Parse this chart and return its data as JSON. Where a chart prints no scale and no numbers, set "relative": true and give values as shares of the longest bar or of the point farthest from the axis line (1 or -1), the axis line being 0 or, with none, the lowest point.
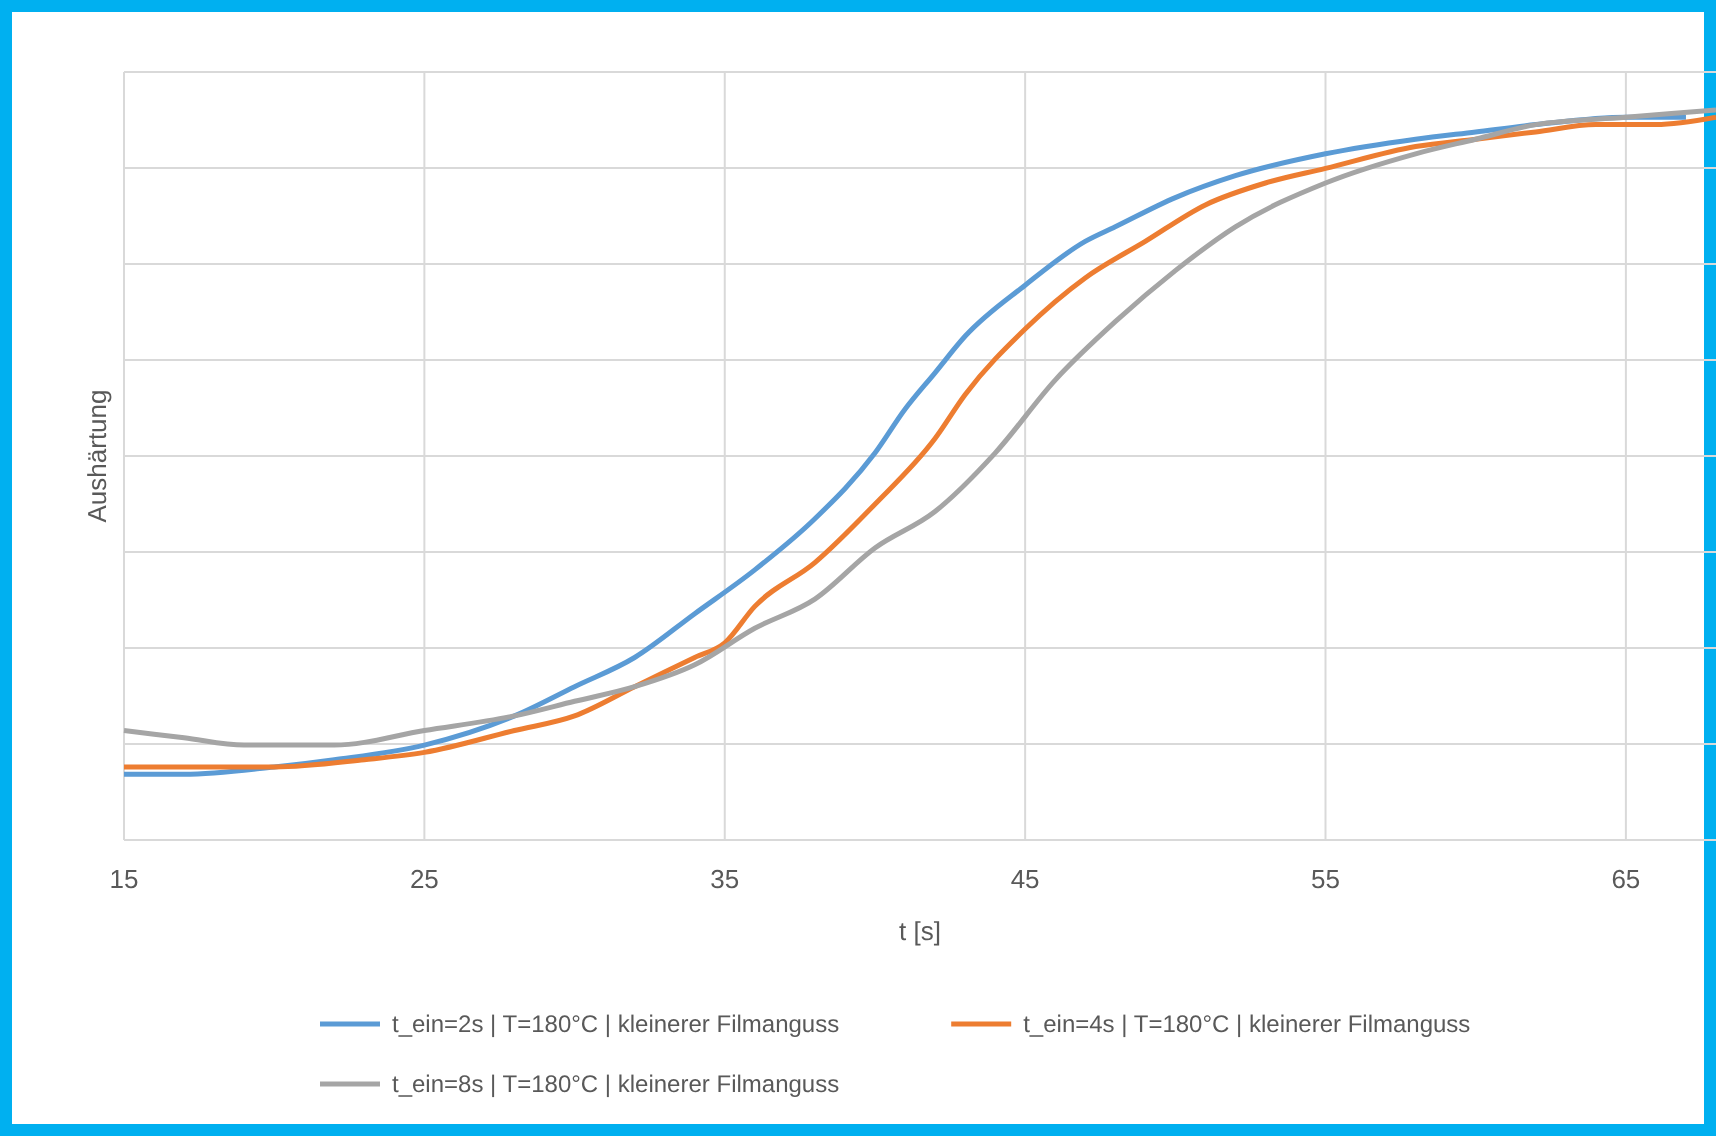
{
  "chart_data": {
    "type": "line",
    "relative": true,
    "xlabel": "t [s]",
    "ylabel": "Aushärtung",
    "xlim": [
      15,
      68
    ],
    "xticks": [
      15,
      25,
      35,
      45,
      55,
      65
    ],
    "grid": true,
    "legend": "bottom",
    "marker": "none",
    "line_style": "solid",
    "series": [
      {
        "name": "t_ein=2s | T=180°C | kleinerer Filmanguss",
        "color": "#5b9bd5",
        "x": [
          15,
          17,
          20,
          22,
          25,
          28,
          30,
          32,
          34,
          36,
          38,
          40,
          41,
          42,
          43,
          45,
          47,
          48,
          50,
          52,
          55,
          58,
          60,
          62,
          65,
          67
        ],
        "values": [
          0.09,
          0.09,
          0.1,
          0.11,
          0.13,
          0.17,
          0.21,
          0.25,
          0.31,
          0.37,
          0.44,
          0.53,
          0.59,
          0.64,
          0.69,
          0.76,
          0.82,
          0.84,
          0.88,
          0.91,
          0.94,
          0.96,
          0.97,
          0.98,
          0.99,
          0.99
        ]
      },
      {
        "name": "t_ein=4s | T=180°C | kleinerer Filmanguss",
        "color": "#ed7d31",
        "x": [
          15,
          17,
          20,
          23,
          25,
          28,
          30,
          32,
          34,
          35,
          36,
          38,
          40,
          42,
          43,
          45,
          47,
          49,
          51,
          53,
          55,
          58,
          60,
          62,
          64,
          66,
          68
        ],
        "values": [
          0.1,
          0.1,
          0.1,
          0.11,
          0.12,
          0.15,
          0.17,
          0.21,
          0.25,
          0.27,
          0.32,
          0.38,
          0.46,
          0.55,
          0.61,
          0.7,
          0.77,
          0.82,
          0.87,
          0.9,
          0.92,
          0.95,
          0.96,
          0.97,
          0.98,
          0.98,
          0.99
        ]
      },
      {
        "name": "t_ein=8s | T=180°C | kleinerer Filmanguss",
        "color": "#a5a5a5",
        "x": [
          15,
          17,
          19,
          22,
          25,
          28,
          30,
          32,
          34,
          36,
          38,
          40,
          42,
          44,
          46,
          48,
          50,
          52,
          55,
          58,
          60,
          62,
          65,
          68
        ],
        "values": [
          0.15,
          0.14,
          0.13,
          0.13,
          0.15,
          0.17,
          0.19,
          0.21,
          0.24,
          0.29,
          0.33,
          0.4,
          0.45,
          0.53,
          0.63,
          0.71,
          0.78,
          0.84,
          0.9,
          0.94,
          0.96,
          0.98,
          0.99,
          1.0
        ]
      }
    ]
  }
}
